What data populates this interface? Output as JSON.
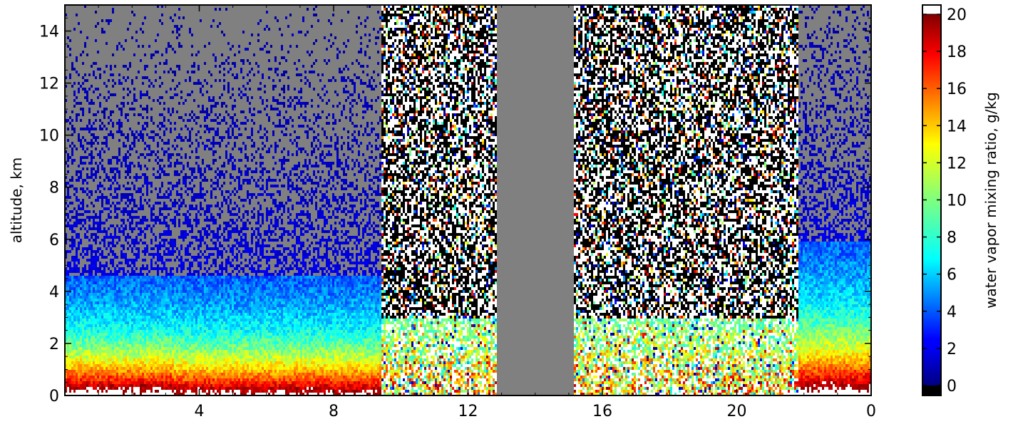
{
  "chart_data": {
    "type": "heatmap",
    "title": "",
    "xlabel": "",
    "ylabel": "altitude, km",
    "x_ticks": [
      "4",
      "8",
      "12",
      "16",
      "20",
      "0"
    ],
    "y_ticks": [
      "0",
      "2",
      "4",
      "6",
      "8",
      "10",
      "12",
      "14"
    ],
    "ylim": [
      0,
      15
    ],
    "colorbar": {
      "label": "water vapor mixing ratio, g/kg",
      "ticks": [
        "0",
        "2",
        "4",
        "6",
        "8",
        "10",
        "12",
        "14",
        "16",
        "18",
        "20"
      ],
      "range": [
        0,
        20
      ],
      "colormap": "jet",
      "over_color": "#ffffff",
      "under_color": "#000000"
    },
    "missing_color": "#808080",
    "x_range_hours": [
      0,
      24
    ],
    "regions": [
      {
        "x": [
          0,
          3.2
        ],
        "description": "moist boundary layer",
        "surface_value": 20,
        "top_km": 4.7
      },
      {
        "x": [
          3.2,
          9.4
        ],
        "description": "moist boundary layer thinning",
        "surface_value": 19,
        "top_km": 4.7
      },
      {
        "x": [
          9.4,
          12.8
        ],
        "description": "noisy daytime data"
      },
      {
        "x": [
          12.8,
          14.3
        ],
        "description": "missing"
      },
      {
        "x": [
          15.1,
          21.8
        ],
        "description": "noisy daytime data"
      },
      {
        "x": [
          21.8,
          24
        ],
        "description": "moist boundary layer",
        "surface_value": 20,
        "top_km": 6
      }
    ],
    "grid": false,
    "legend": "colorbar-right"
  }
}
